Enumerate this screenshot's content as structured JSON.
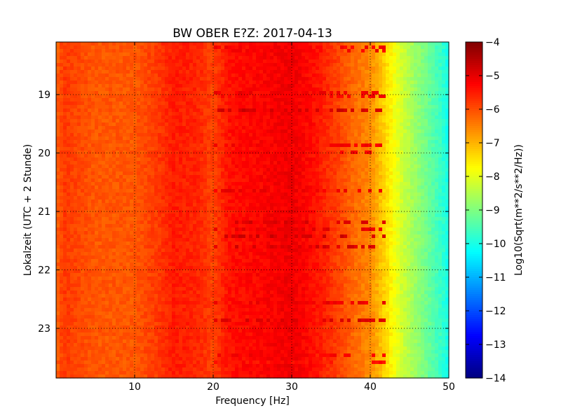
{
  "chart_data": {
    "type": "heatmap",
    "title": "BW OBER E?Z: 2017-04-13",
    "xlabel": "Frequency [Hz]",
    "ylabel": "Lokalzeit (UTC + 2 Stunde)",
    "xlim": [
      0,
      50
    ],
    "ylim": [
      18.1,
      23.85
    ],
    "y_inverted": true,
    "x_ticks": [
      10,
      20,
      30,
      40,
      50
    ],
    "x_tick_labels": [
      "10",
      "20",
      "30",
      "40",
      "50"
    ],
    "y_ticks": [
      19,
      20,
      21,
      22,
      23
    ],
    "y_tick_labels": [
      "19",
      "20",
      "21",
      "22",
      "23"
    ],
    "grid": true,
    "colormap": "jet",
    "colorbar": {
      "label": "Log10(Sqrt(m**2/s**2/Hz))",
      "range": [
        -14,
        -4
      ],
      "ticks": [
        -4,
        -5,
        -6,
        -7,
        -8,
        -9,
        -10,
        -11,
        -12,
        -13,
        -14
      ],
      "tick_labels": [
        "−4",
        "−5",
        "−6",
        "−7",
        "−8",
        "−9",
        "−10",
        "−11",
        "−12",
        "−13",
        "−14"
      ]
    },
    "frequency_profile": {
      "frequency_hz": [
        0,
        1,
        5,
        10,
        13,
        15,
        18,
        20,
        22,
        25,
        28,
        30,
        33,
        36,
        38,
        40,
        41,
        42,
        43,
        44,
        45,
        46,
        47,
        48,
        49,
        50
      ],
      "log10_amplitude": [
        -6.2,
        -5.8,
        -6.1,
        -6.1,
        -5.8,
        -5.5,
        -5.6,
        -5.9,
        -5.4,
        -5.3,
        -5.2,
        -5.1,
        -5.4,
        -5.9,
        -6.3,
        -6.6,
        -7.0,
        -7.4,
        -7.8,
        -8.2,
        -8.5,
        -8.8,
        -9.1,
        -9.4,
        -9.7,
        -10.1
      ]
    },
    "bands": [
      {
        "time": 18.22,
        "log10_amplitude": -5.2
      },
      {
        "time": 18.95,
        "log10_amplitude": -5.1
      },
      {
        "time": 19.05,
        "log10_amplitude": -5.2
      },
      {
        "time": 19.28,
        "log10_amplitude": -4.8
      },
      {
        "time": 19.85,
        "log10_amplitude": -5.2
      },
      {
        "time": 20.0,
        "log10_amplitude": -5.2
      },
      {
        "time": 20.65,
        "log10_amplitude": -5.1
      },
      {
        "time": 21.2,
        "log10_amplitude": -4.9
      },
      {
        "time": 21.33,
        "log10_amplitude": -5.0
      },
      {
        "time": 21.43,
        "log10_amplitude": -4.8
      },
      {
        "time": 21.58,
        "log10_amplitude": -4.9
      },
      {
        "time": 22.55,
        "log10_amplitude": -5.1
      },
      {
        "time": 22.88,
        "log10_amplitude": -4.9
      },
      {
        "time": 23.45,
        "log10_amplitude": -5.2
      },
      {
        "time": 23.6,
        "log10_amplitude": -5.4
      }
    ]
  }
}
